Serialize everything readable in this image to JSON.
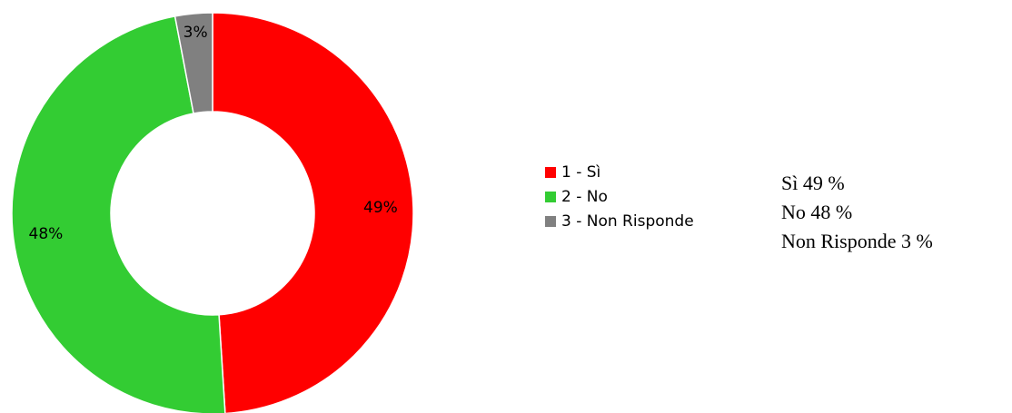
{
  "chart_data": {
    "type": "pie",
    "donut": true,
    "categories": [
      "1 - Sì",
      "2 - No",
      "3 - Non Risponde"
    ],
    "values": [
      49,
      48,
      3
    ],
    "data_labels": [
      "49%",
      "48%",
      "3%"
    ],
    "colors": [
      "#ff0000",
      "#33cc33",
      "#808080"
    ],
    "legend_position": "right",
    "start_angle_deg": 0,
    "direction": "clockwise"
  },
  "summary": {
    "lines": [
      "Sì 49 %",
      "No 48 %",
      "Non Risponde 3 %"
    ]
  }
}
